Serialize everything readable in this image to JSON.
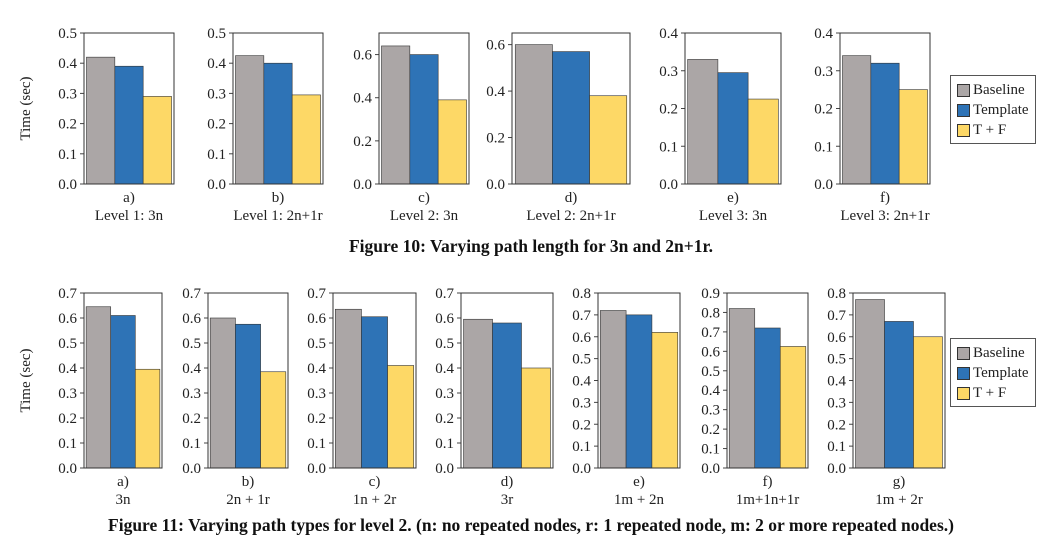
{
  "figure10": {
    "caption": "Figure 10: Varying path length for 3n and 2n+1r.",
    "ylabel": "Time (sec)",
    "legend": [
      "Baseline",
      "Template",
      "T + F"
    ]
  },
  "figure11": {
    "caption": "Figure 11: Varying path types for level 2. (n: no repeated nodes, r: 1 repeated node, m: 2 or more repeated nodes.)",
    "ylabel": "Time (sec)",
    "legend": [
      "Baseline",
      "Template",
      "T + F"
    ]
  },
  "colors": {
    "Baseline": "#aba6a6",
    "Template": "#2e73b6",
    "T + F": "#fdd866"
  },
  "chart_data": [
    {
      "figure": "10",
      "type": "bar",
      "letter": "a)",
      "label": "Level 1: 3n",
      "ylim": [
        0,
        0.5
      ],
      "ticks": [
        "0.0",
        "0.1",
        "0.2",
        "0.3",
        "0.4",
        "0.5"
      ],
      "values": [
        0.42,
        0.39,
        0.29
      ]
    },
    {
      "figure": "10",
      "type": "bar",
      "letter": "b)",
      "label": "Level 1: 2n+1r",
      "ylim": [
        0,
        0.5
      ],
      "ticks": [
        "0.0",
        "0.1",
        "0.2",
        "0.3",
        "0.4",
        "0.5"
      ],
      "values": [
        0.425,
        0.4,
        0.295
      ]
    },
    {
      "figure": "10",
      "type": "bar",
      "letter": "c)",
      "label": "Level 2: 3n",
      "ylim": [
        0,
        0.7
      ],
      "ticks": [
        "0.0",
        "0.2",
        "0.4",
        "0.6"
      ],
      "values": [
        0.64,
        0.6,
        0.39
      ]
    },
    {
      "figure": "10",
      "type": "bar",
      "letter": "d)",
      "label": "Level 2: 2n+1r",
      "ylim": [
        0,
        0.65
      ],
      "ticks": [
        "0.0",
        "0.2",
        "0.4",
        "0.6"
      ],
      "values": [
        0.6,
        0.57,
        0.38
      ]
    },
    {
      "figure": "10",
      "type": "bar",
      "letter": "e)",
      "label": "Level 3: 3n",
      "ylim": [
        0,
        0.4
      ],
      "ticks": [
        "0.0",
        "0.1",
        "0.2",
        "0.3",
        "0.4"
      ],
      "values": [
        0.33,
        0.295,
        0.225
      ]
    },
    {
      "figure": "10",
      "type": "bar",
      "letter": "f)",
      "label": "Level 3: 2n+1r",
      "ylim": [
        0,
        0.4
      ],
      "ticks": [
        "0.0",
        "0.1",
        "0.2",
        "0.3",
        "0.4"
      ],
      "values": [
        0.34,
        0.32,
        0.25
      ]
    },
    {
      "figure": "11",
      "type": "bar",
      "letter": "a)",
      "label": "3n",
      "ylim": [
        0,
        0.7
      ],
      "ticks": [
        "0.0",
        "0.1",
        "0.2",
        "0.3",
        "0.4",
        "0.5",
        "0.6",
        "0.7"
      ],
      "values": [
        0.645,
        0.61,
        0.395
      ]
    },
    {
      "figure": "11",
      "type": "bar",
      "letter": "b)",
      "label": "2n + 1r",
      "ylim": [
        0,
        0.7
      ],
      "ticks": [
        "0.0",
        "0.1",
        "0.2",
        "0.3",
        "0.4",
        "0.5",
        "0.6",
        "0.7"
      ],
      "values": [
        0.6,
        0.575,
        0.385
      ]
    },
    {
      "figure": "11",
      "type": "bar",
      "letter": "c)",
      "label": "1n + 2r",
      "ylim": [
        0,
        0.7
      ],
      "ticks": [
        "0.0",
        "0.1",
        "0.2",
        "0.3",
        "0.4",
        "0.5",
        "0.6",
        "0.7"
      ],
      "values": [
        0.635,
        0.605,
        0.41
      ]
    },
    {
      "figure": "11",
      "type": "bar",
      "letter": "d)",
      "label": "3r",
      "ylim": [
        0,
        0.7
      ],
      "ticks": [
        "0.0",
        "0.1",
        "0.2",
        "0.3",
        "0.4",
        "0.5",
        "0.6",
        "0.7"
      ],
      "values": [
        0.595,
        0.58,
        0.4
      ]
    },
    {
      "figure": "11",
      "type": "bar",
      "letter": "e)",
      "label": "1m + 2n",
      "ylim": [
        0,
        0.8
      ],
      "ticks": [
        "0.0",
        "0.1",
        "0.2",
        "0.3",
        "0.4",
        "0.5",
        "0.6",
        "0.7",
        "0.8"
      ],
      "values": [
        0.72,
        0.7,
        0.62
      ]
    },
    {
      "figure": "11",
      "type": "bar",
      "letter": "f)",
      "label": "1m+1n+1r",
      "ylim": [
        0,
        0.9
      ],
      "ticks": [
        "0.0",
        "0.1",
        "0.2",
        "0.3",
        "0.4",
        "0.5",
        "0.6",
        "0.7",
        "0.8",
        "0.9"
      ],
      "values": [
        0.82,
        0.72,
        0.625
      ]
    },
    {
      "figure": "11",
      "type": "bar",
      "letter": "g)",
      "label": "1m + 2r",
      "ylim": [
        0,
        0.8
      ],
      "ticks": [
        "0.0",
        "0.1",
        "0.2",
        "0.3",
        "0.4",
        "0.5",
        "0.6",
        "0.7",
        "0.8"
      ],
      "values": [
        0.77,
        0.67,
        0.6
      ]
    }
  ]
}
